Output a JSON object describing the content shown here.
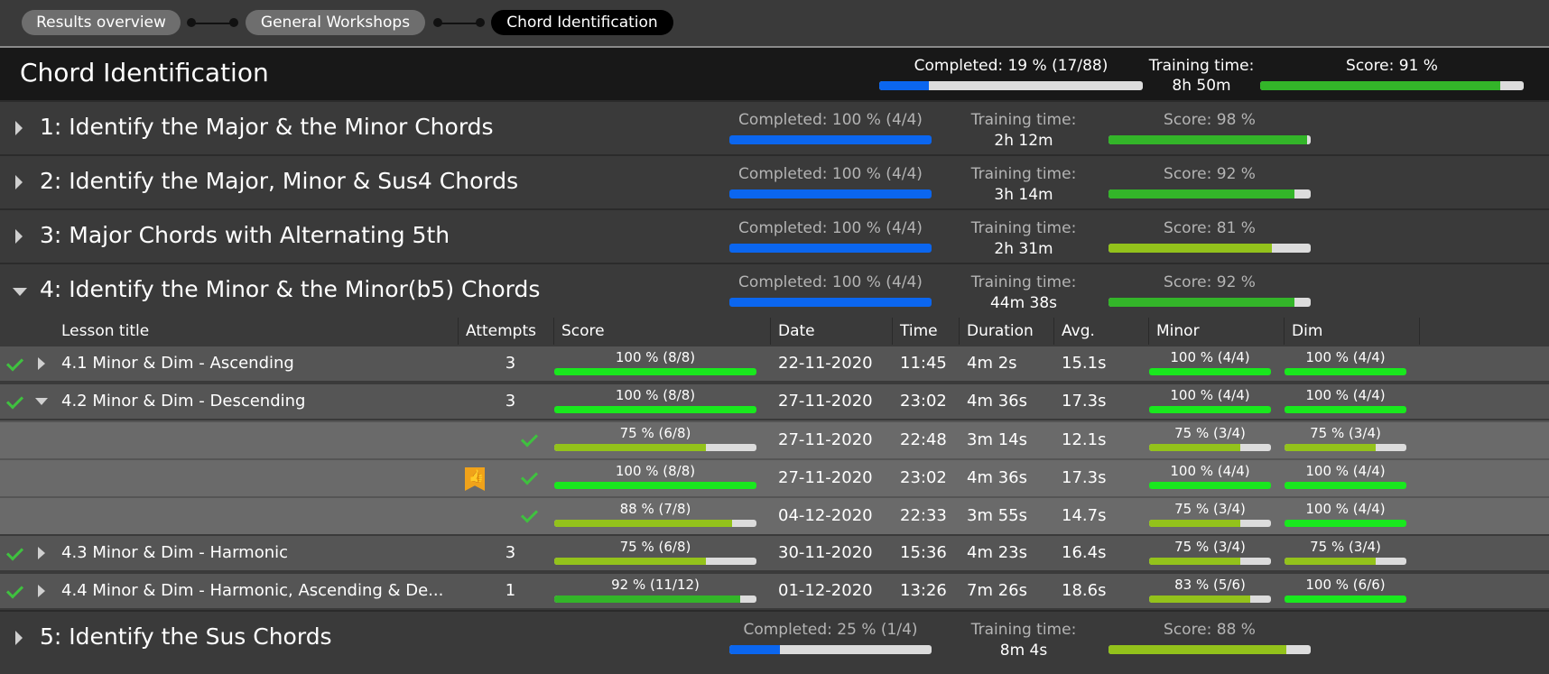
{
  "breadcrumb": [
    "Results overview",
    "General Workshops",
    "Chord Identification"
  ],
  "header": {
    "title": "Chord Identification",
    "completed_label": "Completed: 19 % (17/88)",
    "completed_frac": 0.19,
    "training_label": "Training time:",
    "training_value": "8h 50m",
    "score_label": "Score: 91 %",
    "score_frac": 0.91
  },
  "sections": [
    {
      "title": "1: Identify the Major & the Minor Chords",
      "completed": "Completed: 100 % (4/4)",
      "completed_frac": 1.0,
      "training_label": "Training time:",
      "training": "2h 12m",
      "score": "Score: 98 %",
      "score_frac": 0.98,
      "expanded": false
    },
    {
      "title": "2: Identify the Major, Minor & Sus4 Chords",
      "completed": "Completed: 100 % (4/4)",
      "completed_frac": 1.0,
      "training_label": "Training time:",
      "training": "3h 14m",
      "score": "Score: 92 %",
      "score_frac": 0.92,
      "expanded": false
    },
    {
      "title": "3: Major Chords with Alternating 5th",
      "completed": "Completed: 100 % (4/4)",
      "completed_frac": 1.0,
      "training_label": "Training time:",
      "training": "2h 31m",
      "score": "Score: 81 %",
      "score_frac": 0.81,
      "expanded": false
    },
    {
      "title": "4: Identify the Minor & the Minor(b5) Chords",
      "completed": "Completed: 100 % (4/4)",
      "completed_frac": 1.0,
      "training_label": "Training time:",
      "training": "44m 38s",
      "score": "Score: 92 %",
      "score_frac": 0.92,
      "expanded": true
    },
    {
      "title": "5: Identify the Sus Chords",
      "completed": "Completed: 25 % (1/4)",
      "completed_frac": 0.25,
      "training_label": "Training time:",
      "training": "8m 4s",
      "score": "Score: 88 %",
      "score_frac": 0.88,
      "expanded": false
    }
  ],
  "table": {
    "headers": [
      "Lesson title",
      "Attempts",
      "Score",
      "Date",
      "Time",
      "Duration",
      "Avg. answ...",
      "Minor",
      "Dim"
    ],
    "lessons": [
      {
        "title": "4.1 Minor & Dim - Ascending",
        "attempts": "3",
        "score": "100 %  (8/8)",
        "score_frac": 1.0,
        "date": "22-11-2020",
        "time": "11:45",
        "duration": "4m 2s",
        "avg": "15.1s",
        "minor": "100 %  (4/4)",
        "minor_frac": 1.0,
        "dim": "100 %  (4/4)",
        "dim_frac": 1.0,
        "expanded": false
      },
      {
        "title": "4.2 Minor & Dim - Descending",
        "attempts": "3",
        "score": "100 %  (8/8)",
        "score_frac": 1.0,
        "date": "27-11-2020",
        "time": "23:02",
        "duration": "4m 36s",
        "avg": "17.3s",
        "minor": "100 %  (4/4)",
        "minor_frac": 1.0,
        "dim": "100 %  (4/4)",
        "dim_frac": 1.0,
        "expanded": true
      },
      {
        "title": "4.3 Minor & Dim - Harmonic",
        "attempts": "3",
        "score": "75 %  (6/8)",
        "score_frac": 0.75,
        "date": "30-11-2020",
        "time": "15:36",
        "duration": "4m 23s",
        "avg": "16.4s",
        "minor": "75 %  (3/4)",
        "minor_frac": 0.75,
        "dim": "75 %  (3/4)",
        "dim_frac": 0.75,
        "expanded": false
      },
      {
        "title": "4.4 Minor & Dim - Harmonic, Ascending & De...",
        "attempts": "1",
        "score": "92 %  (11/12)",
        "score_frac": 0.92,
        "date": "01-12-2020",
        "time": "13:26",
        "duration": "7m 26s",
        "avg": "18.6s",
        "minor": "83 %  (5/6)",
        "minor_frac": 0.83,
        "dim": "100 %  (6/6)",
        "dim_frac": 1.0,
        "expanded": false
      }
    ],
    "attempts_4_2": [
      {
        "score": "75 %  (6/8)",
        "score_frac": 0.75,
        "date": "27-11-2020",
        "time": "22:48",
        "duration": "3m 14s",
        "avg": "12.1s",
        "minor": "75 %  (3/4)",
        "minor_frac": 0.75,
        "dim": "75 %  (3/4)",
        "dim_frac": 0.75,
        "best": false
      },
      {
        "score": "100 %  (8/8)",
        "score_frac": 1.0,
        "date": "27-11-2020",
        "time": "23:02",
        "duration": "4m 36s",
        "avg": "17.3s",
        "minor": "100 %  (4/4)",
        "minor_frac": 1.0,
        "dim": "100 %  (4/4)",
        "dim_frac": 1.0,
        "best": true
      },
      {
        "score": "88 %  (7/8)",
        "score_frac": 0.88,
        "date": "04-12-2020",
        "time": "22:33",
        "duration": "3m 55s",
        "avg": "14.7s",
        "minor": "75 %  (3/4)",
        "minor_frac": 0.75,
        "dim": "100 %  (4/4)",
        "dim_frac": 1.0,
        "best": false
      }
    ]
  },
  "icons": {
    "best_attempt": "thumbs-up-bookmark-icon",
    "done": "checkmark-icon",
    "expand": "chevron-right-icon",
    "collapse": "chevron-down-icon"
  },
  "colors": {
    "progress_blue": "#0b66ef",
    "score_green": "#33b529",
    "score_bright": "#19e81e",
    "score_lime": "#93c21b",
    "check": "#3fc13f",
    "bookmark": "#f0a21a"
  }
}
